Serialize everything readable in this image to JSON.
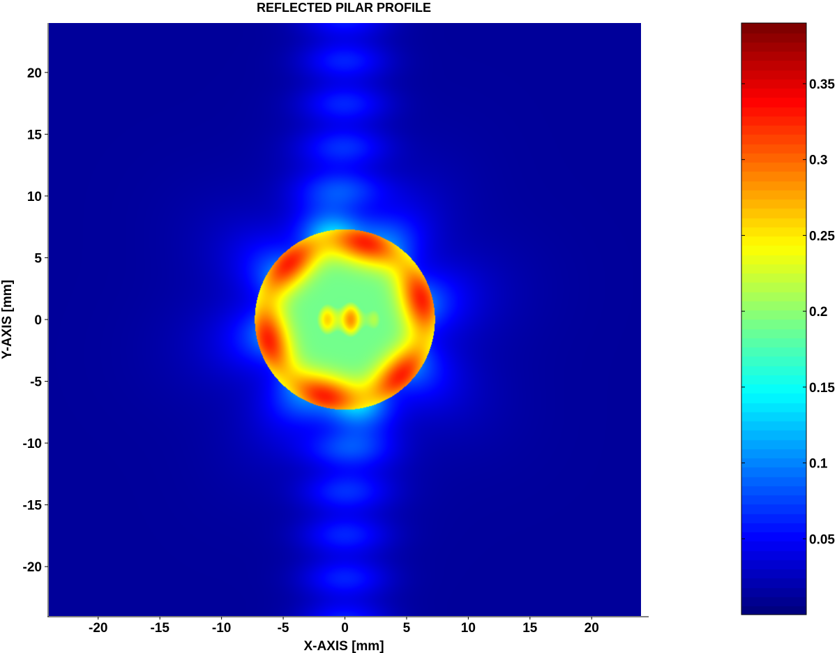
{
  "chart_data": [
    {
      "type": "heatmap",
      "title": "REFLECTED PILAR PROFILE",
      "xlabel": "X-AXIS [mm]",
      "ylabel": "Y-AXIS [mm]",
      "xlim": [
        -24,
        24
      ],
      "ylim": [
        -24,
        24
      ],
      "xticks": [
        -20,
        -15,
        -10,
        -5,
        0,
        5,
        10,
        15,
        20
      ],
      "yticks": [
        20,
        15,
        10,
        5,
        0,
        -5,
        -10,
        -15,
        -20
      ],
      "colormap": "jet",
      "color_range": [
        0,
        0.39
      ],
      "field": {
        "background": 0.01,
        "disk_center": [
          0,
          0
        ],
        "disk_radius_mm": 7.3,
        "outer_ring_value": 0.33,
        "mid_ring_value": 0.19,
        "inner_core_value": 0.29,
        "vertical_band_half_width_mm": 4.5,
        "vertical_band_value": 0.05,
        "halo_value": 0.06
      }
    },
    {
      "type": "colorbar",
      "colormap": "jet",
      "range": [
        0,
        0.39
      ],
      "ticks": [
        0.05,
        0.1,
        0.15,
        0.2,
        0.25,
        0.3,
        0.35
      ],
      "tick_labels": [
        "0.05",
        "0.1",
        "0.15",
        "0.2",
        "0.25",
        "0.3",
        "0.35"
      ]
    }
  ]
}
